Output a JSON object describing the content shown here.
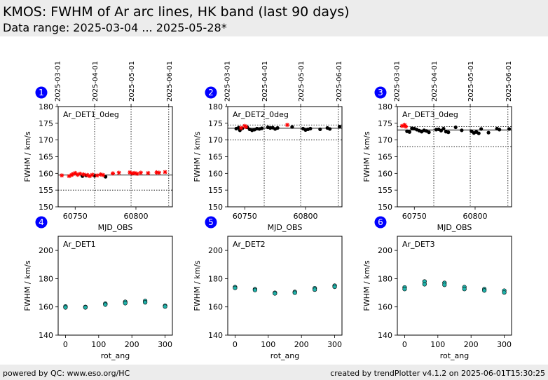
{
  "header": {
    "title": "KMOS: FWHM of Ar arc lines, HK band (last 90 days)",
    "subtitle": "Data range: 2025-03-04 ... 2025-05-28*"
  },
  "footer": {
    "left": "powered by QC: www.eso.org/HC",
    "right": "created by trendPlotter v4.1.2 on 2025-06-01T15:30:25"
  },
  "colors": {
    "good_point": "#000000",
    "outlier_point": "#ff0000",
    "rot_point_fill": "#20b2aa",
    "badge": "#0000ff",
    "header_bg": "#ececec"
  },
  "chart_data": [
    {
      "type": "scatter",
      "badge": "1",
      "label": "Ar_DET1_0deg",
      "xlabel": "MJD_OBS",
      "ylabel": "FWHM / km/s",
      "xlim": [
        60736,
        60830
      ],
      "ylim": [
        150,
        180
      ],
      "xticks": [
        60750,
        60800
      ],
      "yticks": [
        150,
        155,
        160,
        165,
        170,
        175,
        180
      ],
      "top_dates": [
        "2025-03-01",
        "2025-04-01",
        "2025-05-01",
        "2025-06-01"
      ],
      "top_date_mjd": [
        60735,
        60766,
        60796,
        60827
      ],
      "ref_line": 159.5,
      "limits": [
        155,
        180
      ],
      "points_good": [
        [
          60756,
          159.2
        ],
        [
          60759,
          159.4
        ],
        [
          60766,
          159.3
        ],
        [
          60775,
          159.0
        ]
      ],
      "points_outlier": [
        [
          60739,
          159.4
        ],
        [
          60745,
          159.2
        ],
        [
          60747,
          159.5
        ],
        [
          60748,
          159.8
        ],
        [
          60750,
          160.1
        ],
        [
          60752,
          159.6
        ],
        [
          60754,
          159.9
        ],
        [
          60757,
          159.7
        ],
        [
          60760,
          159.5
        ],
        [
          60762,
          159.2
        ],
        [
          60764,
          159.6
        ],
        [
          60768,
          159.4
        ],
        [
          60771,
          159.7
        ],
        [
          60773,
          159.5
        ],
        [
          60781,
          160.0
        ],
        [
          60786,
          160.2
        ],
        [
          60795,
          160.3
        ],
        [
          60797,
          160.0
        ],
        [
          60799,
          160.1
        ],
        [
          60801,
          159.9
        ],
        [
          60804,
          160.2
        ],
        [
          60810,
          160.1
        ],
        [
          60817,
          160.3
        ],
        [
          60819,
          160.2
        ],
        [
          60824,
          160.4
        ]
      ]
    },
    {
      "type": "scatter",
      "badge": "2",
      "label": "Ar_DET2_0deg",
      "xlabel": "MJD_OBS",
      "ylabel": "FWHM / km/s",
      "xlim": [
        60736,
        60830
      ],
      "ylim": [
        150,
        180
      ],
      "xticks": [
        60750,
        60800
      ],
      "yticks": [
        150,
        155,
        160,
        165,
        170,
        175,
        180
      ],
      "top_dates": [
        "2025-03-01",
        "2025-04-01",
        "2025-05-01",
        "2025-06-01"
      ],
      "top_date_mjd": [
        60735,
        60766,
        60796,
        60827
      ],
      "ref_line": 173.5,
      "limits": [
        170,
        174.5
      ],
      "points_good": [
        [
          60743,
          173.4
        ],
        [
          60745,
          173.7
        ],
        [
          60746,
          172.9
        ],
        [
          60748,
          173.5
        ],
        [
          60752,
          173.8
        ],
        [
          60754,
          173.2
        ],
        [
          60756,
          172.9
        ],
        [
          60758,
          173.1
        ],
        [
          60760,
          173.4
        ],
        [
          60762,
          173.3
        ],
        [
          60764,
          173.5
        ],
        [
          60769,
          173.8
        ],
        [
          60771,
          173.6
        ],
        [
          60773,
          173.7
        ],
        [
          60775,
          173.3
        ],
        [
          60777,
          173.6
        ],
        [
          60789,
          173.9
        ],
        [
          60798,
          173.4
        ],
        [
          60800,
          173.0
        ],
        [
          60802,
          173.2
        ],
        [
          60804,
          173.4
        ],
        [
          60812,
          173.2
        ],
        [
          60818,
          173.6
        ],
        [
          60820,
          173.3
        ],
        [
          60828,
          174.0
        ]
      ],
      "points_outlier": [
        [
          60747,
          173.6
        ],
        [
          60750,
          174.2
        ],
        [
          60751,
          173.9
        ],
        [
          60785,
          174.5
        ]
      ]
    },
    {
      "type": "scatter",
      "badge": "3",
      "label": "Ar_DET3_0deg",
      "xlabel": "MJD_OBS",
      "ylabel": "FWHM / km/s",
      "xlim": [
        60736,
        60830
      ],
      "ylim": [
        150,
        180
      ],
      "xticks": [
        60750,
        60800
      ],
      "yticks": [
        150,
        155,
        160,
        165,
        170,
        175,
        180
      ],
      "top_dates": [
        "2025-03-01",
        "2025-04-01",
        "2025-05-01",
        "2025-06-01"
      ],
      "top_date_mjd": [
        60735,
        60766,
        60796,
        60827
      ],
      "ref_line": 173.0,
      "limits": [
        168,
        174
      ],
      "points_good": [
        [
          60744,
          172.6
        ],
        [
          60746,
          172.4
        ],
        [
          60748,
          173.5
        ],
        [
          60750,
          173.4
        ],
        [
          60752,
          173.1
        ],
        [
          60754,
          172.8
        ],
        [
          60756,
          172.5
        ],
        [
          60758,
          172.9
        ],
        [
          60760,
          172.7
        ],
        [
          60762,
          172.3
        ],
        [
          60768,
          173.1
        ],
        [
          60770,
          173.2
        ],
        [
          60772,
          172.8
        ],
        [
          60774,
          173.4
        ],
        [
          60776,
          172.5
        ],
        [
          60778,
          172.3
        ],
        [
          60784,
          173.8
        ],
        [
          60789,
          172.9
        ],
        [
          60797,
          172.6
        ],
        [
          60799,
          172.1
        ],
        [
          60801,
          172.4
        ],
        [
          60803,
          172.0
        ],
        [
          60805,
          173.3
        ],
        [
          60811,
          172.2
        ],
        [
          60818,
          173.4
        ],
        [
          60820,
          173.1
        ],
        [
          60828,
          173.3
        ]
      ],
      "points_outlier": [
        [
          60740,
          174.2
        ],
        [
          60742,
          174.5
        ],
        [
          60743,
          174.0
        ]
      ]
    },
    {
      "type": "scatter",
      "badge": "4",
      "label": "Ar_DET1",
      "xlabel": "rot_ang",
      "ylabel": "FWHM / km/s",
      "xlim": [
        -22,
        322
      ],
      "ylim": [
        140,
        210
      ],
      "xticks": [
        0,
        100,
        200,
        300
      ],
      "yticks": [
        140,
        160,
        180,
        200
      ],
      "points": [
        [
          0,
          160.3
        ],
        [
          0,
          159.6
        ],
        [
          60,
          160.0
        ],
        [
          60,
          159.6
        ],
        [
          120,
          162.3
        ],
        [
          120,
          161.6
        ],
        [
          180,
          163.6
        ],
        [
          180,
          162.6
        ],
        [
          240,
          164.2
        ],
        [
          240,
          163.2
        ],
        [
          300,
          160.8
        ],
        [
          300,
          160.2
        ]
      ]
    },
    {
      "type": "scatter",
      "badge": "5",
      "label": "Ar_DET2",
      "xlabel": "rot_ang",
      "ylabel": "FWHM / km/s",
      "xlim": [
        -22,
        322
      ],
      "ylim": [
        140,
        210
      ],
      "xticks": [
        0,
        100,
        200,
        300
      ],
      "yticks": [
        140,
        160,
        180,
        200
      ],
      "points": [
        [
          0,
          174.0
        ],
        [
          0,
          173.4
        ],
        [
          60,
          172.5
        ],
        [
          60,
          171.9
        ],
        [
          120,
          170.0
        ],
        [
          120,
          169.5
        ],
        [
          180,
          170.6
        ],
        [
          180,
          170.0
        ],
        [
          240,
          173.2
        ],
        [
          240,
          172.2
        ],
        [
          300,
          175.0
        ],
        [
          300,
          174.2
        ]
      ]
    },
    {
      "type": "scatter",
      "badge": "6",
      "label": "Ar_DET3",
      "xlabel": "rot_ang",
      "ylabel": "FWHM / km/s",
      "xlim": [
        -22,
        322
      ],
      "ylim": [
        140,
        210
      ],
      "xticks": [
        0,
        100,
        200,
        300
      ],
      "yticks": [
        140,
        160,
        180,
        200
      ],
      "points": [
        [
          0,
          173.8
        ],
        [
          0,
          172.6
        ],
        [
          60,
          178.0
        ],
        [
          60,
          176.0
        ],
        [
          120,
          177.0
        ],
        [
          120,
          175.6
        ],
        [
          180,
          174.0
        ],
        [
          180,
          172.6
        ],
        [
          240,
          172.6
        ],
        [
          240,
          171.6
        ],
        [
          300,
          171.5
        ],
        [
          300,
          170.2
        ]
      ]
    }
  ]
}
